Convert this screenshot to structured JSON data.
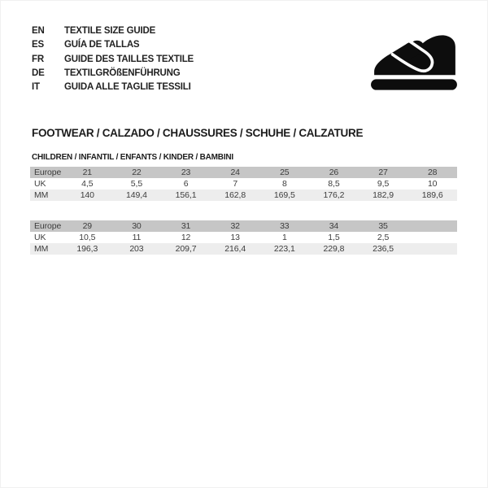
{
  "languages": [
    {
      "code": "EN",
      "label": "TEXTILE SIZE GUIDE"
    },
    {
      "code": "ES",
      "label": "GUÍA DE TALLAS"
    },
    {
      "code": "FR",
      "label": "GUIDE DES TAILLES TEXTILE"
    },
    {
      "code": "DE",
      "label": "TEXTILGRÖßENFÜHRUNG"
    },
    {
      "code": "IT",
      "label": "GUIDA ALLE TAGLIE TESSILI"
    }
  ],
  "icon": {
    "name": "children-shoe-icon",
    "color": "#0d0d0d"
  },
  "section_title": "FOOTWEAR / CALZADO / CHAUSSURES / SCHUHE / CALZATURE",
  "subsection_title": "CHILDREN / INFANTIL / ENFANTS / KINDER / BAMBINI",
  "tables": [
    {
      "rows": [
        {
          "label": "Europe",
          "values": [
            "21",
            "22",
            "23",
            "24",
            "25",
            "26",
            "27",
            "28"
          ]
        },
        {
          "label": "UK",
          "values": [
            "4,5",
            "5,5",
            "6",
            "7",
            "8",
            "8,5",
            "9,5",
            "10"
          ]
        },
        {
          "label": "MM",
          "values": [
            "140",
            "149,4",
            "156,1",
            "162,8",
            "169,5",
            "176,2",
            "182,9",
            "189,6"
          ]
        }
      ]
    },
    {
      "rows": [
        {
          "label": "Europe",
          "values": [
            "29",
            "30",
            "31",
            "32",
            "33",
            "34",
            "35",
            ""
          ]
        },
        {
          "label": "UK",
          "values": [
            "10,5",
            "11",
            "12",
            "13",
            "1",
            "1,5",
            "2,5",
            ""
          ]
        },
        {
          "label": "MM",
          "values": [
            "196,3",
            "203",
            "209,7",
            "216,4",
            "223,1",
            "229,8",
            "236,5",
            ""
          ]
        }
      ]
    }
  ],
  "colors": {
    "header_row_bg": "#c6c6c6",
    "alt_row_bg": "#ededed",
    "table_text": "#3d3d3d",
    "title_text": "#1c1c1c"
  }
}
